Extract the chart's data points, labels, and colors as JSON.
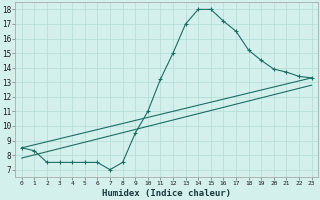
{
  "xlabel": "Humidex (Indice chaleur)",
  "ylabel": "",
  "bg_color": "#d4f0ec",
  "grid_color": "#b8ddd8",
  "line_color": "#1a6e64",
  "xlim": [
    -0.5,
    23.5
  ],
  "ylim": [
    6.5,
    18.5
  ],
  "xticks": [
    0,
    1,
    2,
    3,
    4,
    5,
    6,
    7,
    8,
    9,
    10,
    11,
    12,
    13,
    14,
    15,
    16,
    17,
    18,
    19,
    20,
    21,
    22,
    23
  ],
  "yticks": [
    7,
    8,
    9,
    10,
    11,
    12,
    13,
    14,
    15,
    16,
    17,
    18
  ],
  "line1_x": [
    0,
    1,
    2,
    3,
    4,
    5,
    6,
    7,
    8,
    9,
    10,
    11,
    12,
    13,
    14,
    15,
    16,
    17,
    18,
    19,
    20,
    21,
    22,
    23
  ],
  "line1_y": [
    8.5,
    8.3,
    7.5,
    7.5,
    7.5,
    7.5,
    7.5,
    7.0,
    7.5,
    9.5,
    11.0,
    13.2,
    15.0,
    17.0,
    18.0,
    18.0,
    17.2,
    16.5,
    15.2,
    14.5,
    13.9,
    13.7,
    13.4,
    13.3
  ],
  "line2_x": [
    0,
    23
  ],
  "line2_y": [
    8.5,
    13.3
  ],
  "line3_x": [
    0,
    23
  ],
  "line3_y": [
    7.8,
    12.8
  ]
}
